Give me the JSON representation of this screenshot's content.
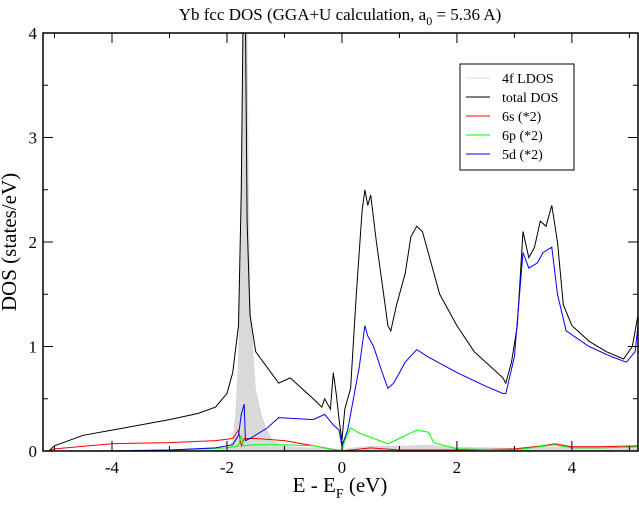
{
  "chart_data": {
    "type": "line",
    "title": {
      "main": "Yb fcc DOS (GGA+U calculation, a",
      "sub": "0",
      "rest": " = 5.36 A)"
    },
    "xlabel": {
      "main": "E - E",
      "sub": "F",
      "rest": " (eV)"
    },
    "ylabel": "DOS (states/eV)",
    "xlim": [
      -5.2,
      5.15
    ],
    "ylim": [
      0,
      4
    ],
    "xticks": [
      -4,
      -2,
      0,
      2,
      4
    ],
    "xtick_labels": [
      "-4",
      "-2",
      "0",
      "2",
      "4"
    ],
    "yticks": [
      0,
      1,
      2,
      3,
      4
    ],
    "ytick_labels": [
      "0",
      "1",
      "2",
      "3",
      "4"
    ],
    "grid": false,
    "legend_position": "top-right",
    "series": [
      {
        "name": "4f LDOS",
        "color": "#d9d9d9",
        "fill": true,
        "x": [
          -5.2,
          -2,
          -1.9,
          -1.85,
          -1.8,
          -1.75,
          -1.72,
          -1.65,
          -1.6,
          -1.5,
          -1.4,
          -1.3,
          -1.2,
          -1,
          -0.5,
          0,
          0.5,
          1,
          1.5,
          2,
          3,
          4,
          5.15
        ],
        "y": [
          0,
          0.02,
          0.1,
          0.4,
          1.0,
          3,
          4.2,
          4.2,
          1.5,
          0.6,
          0.35,
          0.2,
          0.1,
          0.05,
          0.03,
          0.02,
          0.05,
          0.05,
          0.06,
          0.04,
          0.03,
          0.05,
          0.05
        ]
      },
      {
        "name": "total DOS",
        "color": "#000000",
        "x": [
          -5.1,
          -5,
          -4.5,
          -4,
          -3.5,
          -3,
          -2.5,
          -2.2,
          -2,
          -1.9,
          -1.8,
          -1.75,
          -1.72,
          -1.68,
          -1.65,
          -1.6,
          -1.5,
          -1.3,
          -1.1,
          -0.9,
          -0.7,
          -0.5,
          -0.35,
          -0.3,
          -0.2,
          -0.15,
          -0.1,
          -0.05,
          0,
          0.05,
          0.15,
          0.25,
          0.35,
          0.4,
          0.45,
          0.5,
          0.6,
          0.7,
          0.8,
          0.85,
          0.95,
          1.1,
          1.2,
          1.3,
          1.4,
          1.5,
          1.7,
          2,
          2.3,
          2.6,
          2.8,
          2.85,
          2.95,
          3.05,
          3.15,
          3.25,
          3.35,
          3.45,
          3.55,
          3.65,
          3.75,
          3.85,
          4,
          4.3,
          4.6,
          4.9,
          5.05,
          5.15
        ],
        "y": [
          0,
          0.05,
          0.15,
          0.2,
          0.25,
          0.3,
          0.36,
          0.42,
          0.55,
          0.75,
          1.2,
          2.5,
          4.2,
          4.2,
          2.2,
          1.3,
          0.95,
          0.8,
          0.65,
          0.7,
          0.6,
          0.5,
          0.42,
          0.5,
          0.4,
          0.75,
          0.55,
          0.3,
          0.1,
          0.4,
          0.6,
          1.5,
          2.3,
          2.5,
          2.35,
          2.45,
          2.0,
          1.6,
          1.2,
          1.15,
          1.4,
          1.7,
          2.05,
          2.15,
          2.1,
          1.9,
          1.5,
          1.2,
          0.95,
          0.8,
          0.7,
          0.65,
          0.85,
          1.2,
          2.1,
          1.85,
          1.95,
          2.2,
          2.15,
          2.35,
          2.0,
          1.4,
          1.2,
          1.05,
          0.95,
          0.88,
          1.0,
          1.3
        ]
      },
      {
        "name": "6s (*2)",
        "color": "#ff0000",
        "x": [
          -5.1,
          -5,
          -4,
          -3,
          -2.2,
          -1.9,
          -1.8,
          -1.75,
          -1.7,
          -1.5,
          -1,
          -0.5,
          0,
          0.5,
          1,
          2,
          3,
          3.5,
          3.7,
          4,
          4.5,
          5.15
        ],
        "y": [
          0,
          0.02,
          0.07,
          0.08,
          0.1,
          0.12,
          0.2,
          0.05,
          0.12,
          0.12,
          0.1,
          0.05,
          0,
          0.03,
          0.01,
          0.01,
          0.02,
          0.05,
          0.07,
          0.04,
          0.04,
          0.05
        ]
      },
      {
        "name": "6p (*2)",
        "color": "#00ff00",
        "x": [
          -4.5,
          -3,
          -2,
          -1.8,
          -1.75,
          -1.72,
          -1.5,
          -1,
          -0.5,
          0,
          0.05,
          0.15,
          0.3,
          0.5,
          0.8,
          1,
          1.3,
          1.5,
          1.6,
          2,
          3,
          3.7,
          4,
          4.5,
          5.15
        ],
        "y": [
          0,
          0.01,
          0.03,
          0.05,
          0.15,
          0.05,
          0.06,
          0.06,
          0.05,
          0,
          0.1,
          0.22,
          0.17,
          0.13,
          0.07,
          0.12,
          0.2,
          0.18,
          0.08,
          0.02,
          0.01,
          0.06,
          0.03,
          0.03,
          0.04
        ]
      },
      {
        "name": "5d (*2)",
        "color": "#0000ff",
        "x": [
          -5.1,
          -4,
          -3,
          -2.2,
          -1.9,
          -1.8,
          -1.75,
          -1.7,
          -1.68,
          -1.6,
          -1.3,
          -1.1,
          -0.5,
          -0.3,
          -0.15,
          -0.05,
          0,
          0.1,
          0.2,
          0.3,
          0.4,
          0.45,
          0.55,
          0.7,
          0.8,
          0.9,
          1.1,
          1.3,
          1.5,
          2,
          2.5,
          2.8,
          2.85,
          3,
          3.15,
          3.25,
          3.4,
          3.5,
          3.65,
          3.75,
          3.9,
          4.3,
          4.7,
          4.95,
          5.1,
          5.15
        ],
        "y": [
          0,
          0,
          0.01,
          0.03,
          0.06,
          0.15,
          0.35,
          0.45,
          0.1,
          0.12,
          0.22,
          0.32,
          0.3,
          0.35,
          0.25,
          0.2,
          0.05,
          0.2,
          0.5,
          0.8,
          1.2,
          1.1,
          1.0,
          0.75,
          0.6,
          0.65,
          0.85,
          0.97,
          0.9,
          0.75,
          0.62,
          0.55,
          0.55,
          0.9,
          1.9,
          1.75,
          1.8,
          1.9,
          1.95,
          1.5,
          1.15,
          1.0,
          0.9,
          0.85,
          0.95,
          1.2
        ]
      }
    ]
  }
}
